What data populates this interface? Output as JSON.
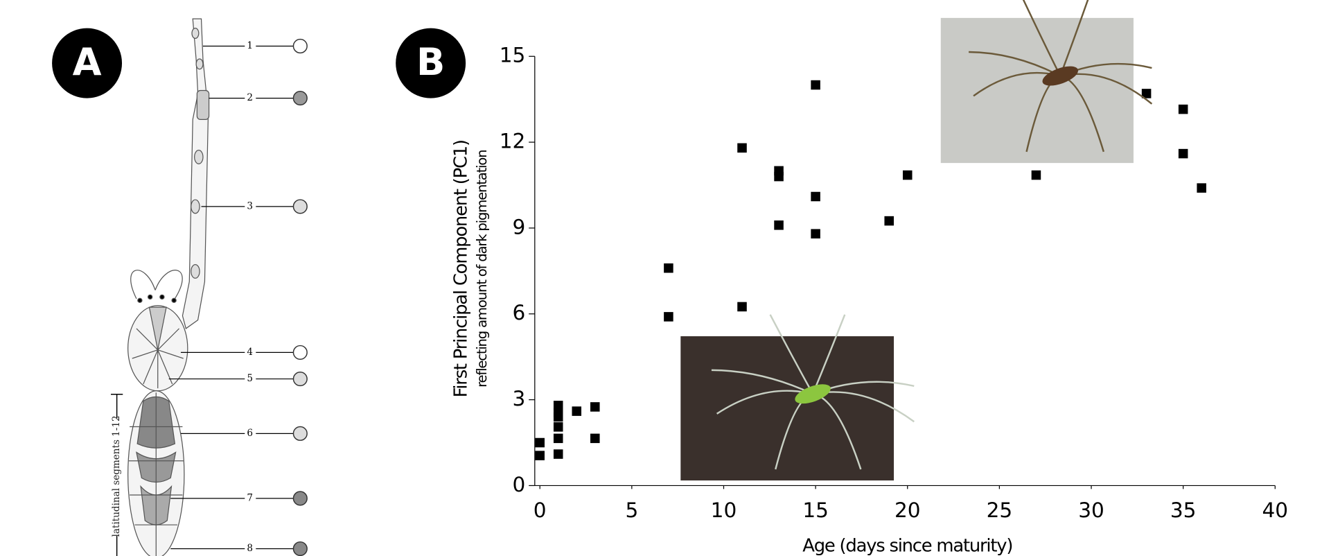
{
  "panel_a": {
    "label": "A",
    "markers": [
      "1",
      "2",
      "3",
      "4",
      "5",
      "6",
      "7",
      "8"
    ],
    "bracket_label": "latitudinal segments 1-12"
  },
  "chart_data": {
    "type": "scatter",
    "panel_label": "B",
    "xlabel": "Age (days since maturity)",
    "ylabel": "First Principal Component (PC1)",
    "ylabel_sub": "reflecting amount of dark pigmentation",
    "color": "#000000",
    "x": [
      0,
      0,
      1,
      1,
      1,
      1,
      1,
      1,
      2,
      3,
      3,
      7,
      7,
      11,
      11,
      13,
      13,
      13,
      15,
      15,
      15,
      19,
      20,
      27,
      33,
      35,
      35,
      36
    ],
    "values": [
      1.5,
      1.05,
      2.8,
      2.55,
      2.4,
      2.05,
      1.65,
      1.1,
      2.6,
      2.75,
      1.65,
      7.6,
      5.9,
      11.8,
      6.25,
      11.0,
      10.8,
      9.1,
      14.0,
      10.1,
      8.8,
      9.25,
      10.85,
      10.85,
      13.7,
      13.15,
      11.6,
      10.4
    ],
    "xlim": [
      0,
      40
    ],
    "xticks": [
      0,
      5,
      10,
      15,
      20,
      25,
      30,
      35,
      40
    ],
    "ylim": [
      0,
      15
    ],
    "yticks": [
      0,
      3,
      6,
      9,
      12,
      15
    ]
  }
}
